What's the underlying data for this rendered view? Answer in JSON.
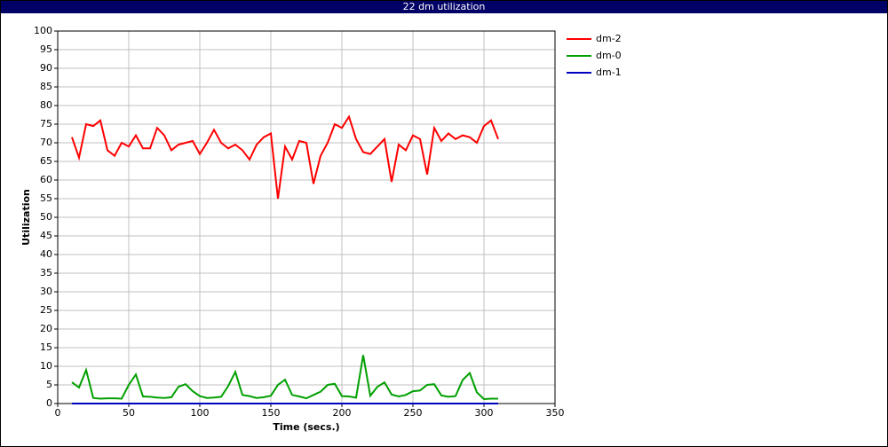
{
  "chart_data": {
    "type": "line",
    "title": "22 dm utilization",
    "x_label": "Time (secs.)",
    "y_label": "Utilization",
    "x": [
      10,
      15,
      20,
      25,
      30,
      35,
      40,
      45,
      50,
      55,
      60,
      65,
      70,
      75,
      80,
      85,
      90,
      95,
      100,
      105,
      110,
      115,
      120,
      125,
      130,
      135,
      140,
      145,
      150,
      155,
      160,
      165,
      170,
      175,
      180,
      185,
      190,
      195,
      200,
      205,
      210,
      215,
      220,
      225,
      230,
      235,
      240,
      245,
      250,
      255,
      260,
      265,
      270,
      275,
      280,
      285,
      290,
      295,
      300,
      305,
      310
    ],
    "series": [
      {
        "name": "dm-2",
        "color": "#ff0000",
        "values": [
          71.5,
          66,
          75,
          74.5,
          76,
          68,
          66.5,
          70,
          69,
          72,
          68.5,
          68.5,
          74,
          72,
          68,
          69.5,
          70,
          70.5,
          67,
          70,
          73.5,
          70,
          68.5,
          69.5,
          68,
          65.5,
          69.5,
          71.5,
          72.5,
          55,
          69,
          65.5,
          70.5,
          70,
          59,
          66.5,
          70,
          75,
          74,
          77,
          71,
          67.5,
          67,
          69,
          71,
          59.5,
          69.5,
          68,
          72,
          71,
          61.5,
          74,
          70.5,
          72.5,
          71,
          72,
          71.5,
          70,
          74.5,
          76,
          71
        ]
      },
      {
        "name": "dm-0",
        "color": "#00a000",
        "values": [
          5.7,
          4.3,
          9,
          1.5,
          1.3,
          1.4,
          1.4,
          1.3,
          5,
          7.8,
          1.9,
          1.8,
          1.6,
          1.5,
          1.7,
          4.5,
          5.2,
          3.3,
          2,
          1.5,
          1.6,
          1.8,
          4.7,
          8.5,
          2.3,
          2,
          1.5,
          1.7,
          2.1,
          5,
          6.4,
          2.3,
          1.9,
          1.4,
          2.3,
          3.2,
          5,
          5.3,
          2,
          1.9,
          1.6,
          13,
          2.1,
          4.5,
          5.7,
          2.4,
          1.9,
          2.3,
          3.3,
          3.5,
          5,
          5.2,
          2.2,
          1.8,
          2,
          6.3,
          8.2,
          3,
          1.2,
          1.3,
          1.3
        ]
      },
      {
        "name": "dm-1",
        "color": "#0000c0",
        "values": [
          0,
          0,
          0,
          0,
          0,
          0,
          0,
          0,
          0,
          0,
          0,
          0,
          0,
          0,
          0,
          0,
          0,
          0,
          0,
          0,
          0,
          0,
          0,
          0,
          0,
          0,
          0,
          0,
          0,
          0,
          0,
          0,
          0,
          0,
          0,
          0,
          0,
          0,
          0,
          0,
          0,
          0,
          0,
          0,
          0,
          0,
          0,
          0,
          0,
          0,
          0,
          0,
          0,
          0,
          0,
          0,
          0,
          0,
          0,
          0,
          0
        ]
      }
    ],
    "xlim": [
      0,
      350
    ],
    "xticks": [
      0,
      50,
      100,
      150,
      200,
      250,
      300,
      350
    ],
    "ylim": [
      0,
      100
    ],
    "yticks": [
      0,
      5,
      10,
      15,
      20,
      25,
      30,
      35,
      40,
      45,
      50,
      55,
      60,
      65,
      70,
      75,
      80,
      85,
      90,
      95,
      100
    ],
    "grid": true,
    "legend": "upper right"
  }
}
